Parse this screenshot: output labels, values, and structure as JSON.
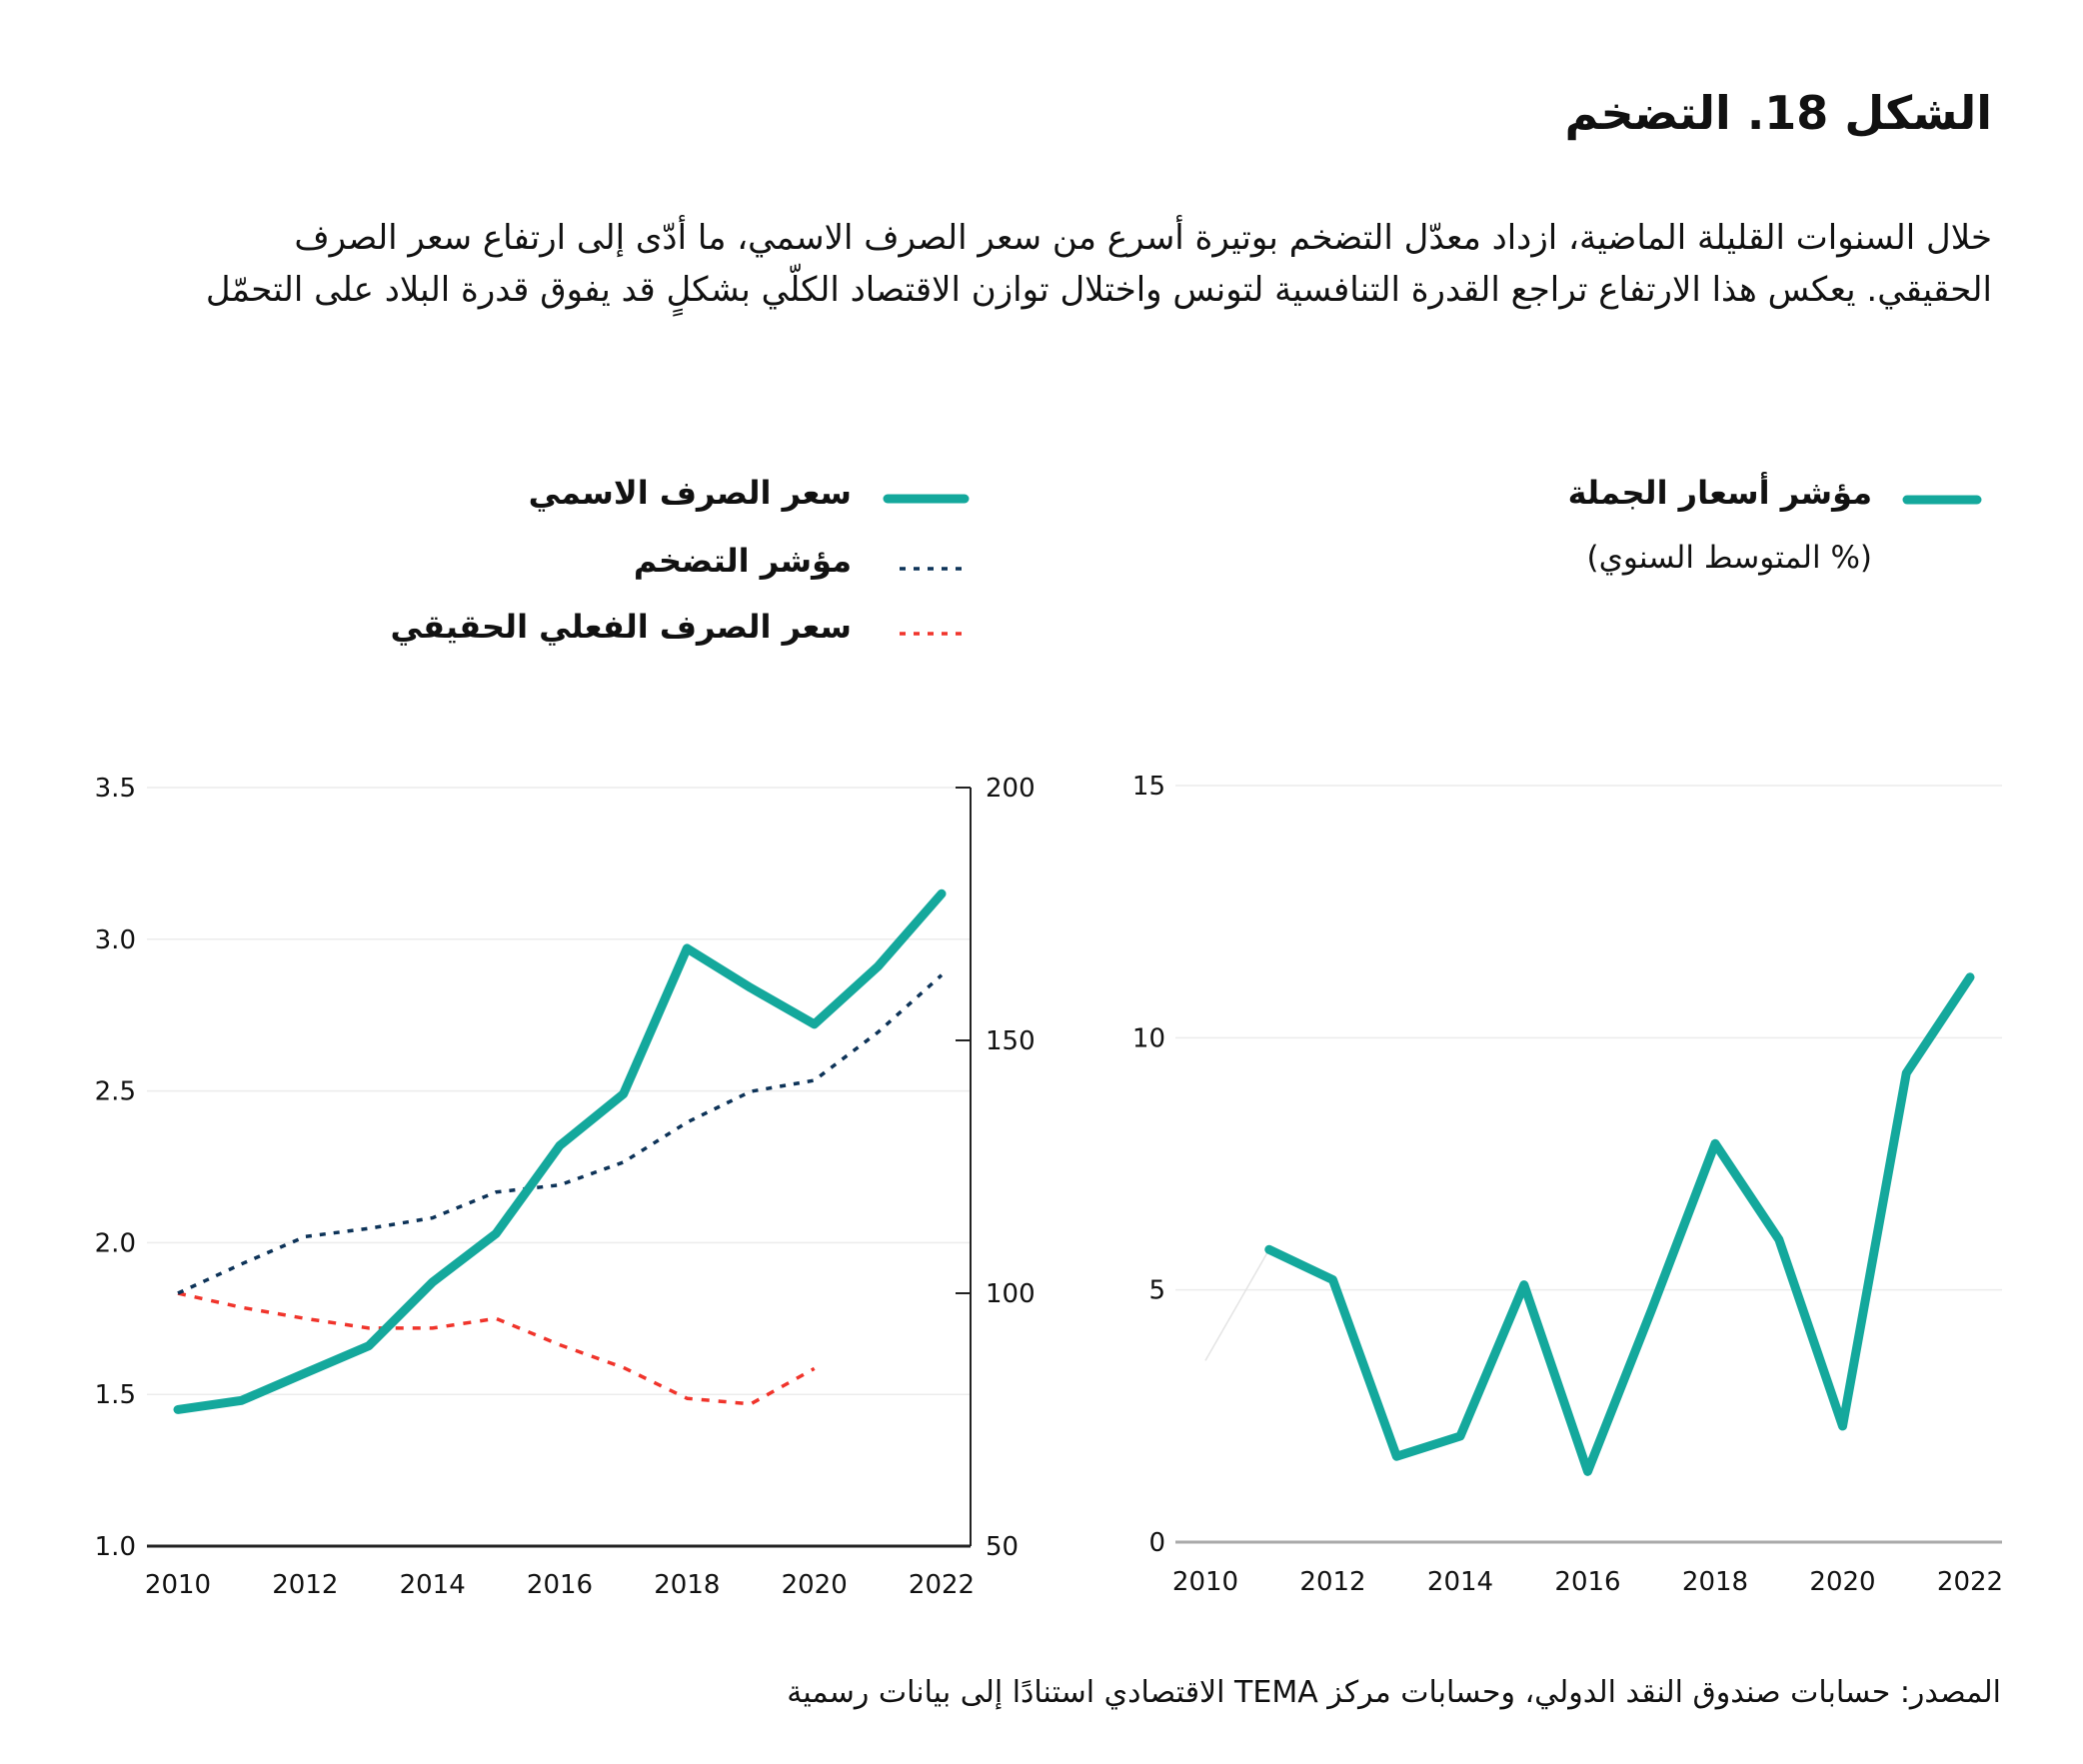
{
  "title": "الشكل 18. التضخم",
  "description": "خلال السنوات القليلة الماضية، ازداد معدّل التضخم بوتيرة أسرع من سعر الصرف الاسمي، ما أدّى إلى ارتفاع سعر الصرف الحقيقي. يعكس هذا الارتفاع تراجع القدرة التنافسية لتونس واختلال توازن الاقتصاد الكلّي بشكلٍ قد يفوق قدرة البلاد على التحمّل",
  "source": "المصدر: حسابات صندوق النقد الدولي، وحسابات مركز TEMA الاقتصادي استنادًا إلى بيانات رسمية",
  "colors": {
    "teal": "#14a89c",
    "navy": "#0d3358",
    "red": "#f0342b",
    "grid": "#ececec"
  },
  "chart_data": [
    {
      "type": "line",
      "legend": [
        "سعر الصرف الاسمي",
        "مؤشر التضخم",
        "سعر الصرف الفعلي الحقيقي"
      ],
      "x": [
        2010,
        2011,
        2012,
        2013,
        2014,
        2015,
        2016,
        2017,
        2018,
        2019,
        2020,
        2021,
        2022
      ],
      "x_ticks": [
        "2010",
        "2012",
        "2014",
        "2016",
        "2018",
        "2020",
        "2022"
      ],
      "y_left": {
        "range": [
          1.0,
          3.5
        ],
        "ticks": [
          "1.0",
          "1.5",
          "2.0",
          "2.5",
          "3.0",
          "3.5"
        ]
      },
      "y_right": {
        "range": [
          50,
          200
        ],
        "ticks": [
          "50",
          "100",
          "150",
          "200"
        ]
      },
      "grid": true,
      "series": [
        {
          "name": "سعر الصرف الاسمي",
          "axis": "left",
          "style": "solid",
          "color": "#14a89c",
          "values": [
            1.45,
            1.48,
            1.57,
            1.66,
            1.87,
            2.03,
            2.32,
            2.49,
            2.97,
            2.84,
            2.72,
            2.91,
            3.15
          ]
        },
        {
          "name": "مؤشر التضخم",
          "axis": "right",
          "style": "dotted",
          "color": "#0d3358",
          "values": [
            100,
            105.8,
            111.2,
            112.8,
            114.9,
            120,
            121.4,
            125.9,
            133.8,
            139.9,
            142.1,
            151.6,
            162.9
          ]
        },
        {
          "name": "سعر الصرف الفعلي الحقيقي",
          "axis": "right",
          "style": "dashed",
          "color": "#f0342b",
          "values": [
            100,
            97.2,
            95,
            93.1,
            93.1,
            95,
            89.8,
            85.3,
            79.2,
            78.1,
            85.1,
            null,
            null
          ]
        }
      ]
    },
    {
      "type": "line",
      "legend": [
        "مؤشر أسعار الجملة"
      ],
      "subtitle": "(% المتوسط السنوي)",
      "x": [
        2010,
        2011,
        2012,
        2013,
        2014,
        2015,
        2016,
        2017,
        2018,
        2019,
        2020,
        2021,
        2022
      ],
      "x_ticks": [
        "2010",
        "2012",
        "2014",
        "2016",
        "2018",
        "2020",
        "2022"
      ],
      "y": {
        "range": [
          0,
          15
        ],
        "ticks": [
          "0",
          "5",
          "10",
          "15"
        ]
      },
      "grid": true,
      "series": [
        {
          "name": "مؤشر أسعار الجملة",
          "color": "#14a89c",
          "values": [
            3.6,
            5.8,
            5.2,
            1.7,
            2.1,
            5.1,
            1.4,
            4.6,
            7.9,
            6.0,
            2.3,
            9.3,
            11.2
          ]
        }
      ]
    }
  ]
}
